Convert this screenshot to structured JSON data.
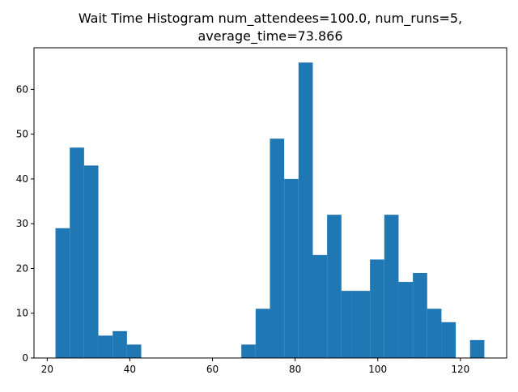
{
  "chart_data": {
    "type": "bar",
    "title_line1": "Wait Time Histogram num_attendees=100.0, num_runs=5,",
    "title_line2": "average_time=73.866",
    "xlabel": "",
    "ylabel": "",
    "xlim": [
      16.8,
      131.2
    ],
    "ylim": [
      0,
      69.3
    ],
    "bin_width": 3.46,
    "bins": [
      {
        "x0": 22.0,
        "value": 29
      },
      {
        "x0": 25.46,
        "value": 47
      },
      {
        "x0": 28.92,
        "value": 43
      },
      {
        "x0": 32.38,
        "value": 5
      },
      {
        "x0": 35.84,
        "value": 6
      },
      {
        "x0": 39.3,
        "value": 3
      },
      {
        "x0": 42.76,
        "value": 0
      },
      {
        "x0": 46.22,
        "value": 0
      },
      {
        "x0": 49.68,
        "value": 0
      },
      {
        "x0": 53.14,
        "value": 0
      },
      {
        "x0": 56.6,
        "value": 0
      },
      {
        "x0": 60.06,
        "value": 0
      },
      {
        "x0": 63.52,
        "value": 0
      },
      {
        "x0": 66.98,
        "value": 3
      },
      {
        "x0": 70.44,
        "value": 11
      },
      {
        "x0": 73.9,
        "value": 49
      },
      {
        "x0": 77.36,
        "value": 40
      },
      {
        "x0": 80.82,
        "value": 66
      },
      {
        "x0": 84.28,
        "value": 23
      },
      {
        "x0": 87.74,
        "value": 32
      },
      {
        "x0": 91.2,
        "value": 15
      },
      {
        "x0": 94.66,
        "value": 15
      },
      {
        "x0": 98.12,
        "value": 22
      },
      {
        "x0": 101.58,
        "value": 32
      },
      {
        "x0": 105.04,
        "value": 17
      },
      {
        "x0": 108.5,
        "value": 19
      },
      {
        "x0": 111.96,
        "value": 11
      },
      {
        "x0": 115.42,
        "value": 8
      },
      {
        "x0": 118.88,
        "value": 0
      },
      {
        "x0": 122.34,
        "value": 4
      }
    ],
    "x_ticks": [
      20,
      40,
      60,
      80,
      100,
      120
    ],
    "y_ticks": [
      0,
      10,
      20,
      30,
      40,
      50,
      60
    ],
    "bar_color": "#1f77b4",
    "grid": false
  }
}
